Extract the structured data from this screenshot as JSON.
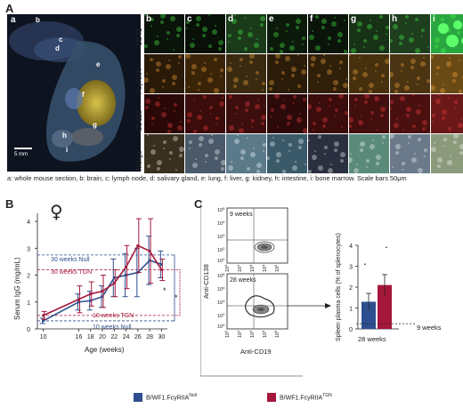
{
  "panel_labels": {
    "A": "A",
    "B": "B",
    "C": "C"
  },
  "panelA": {
    "overview_letters": [
      "a",
      "b",
      "c",
      "d",
      "e",
      "f",
      "g",
      "h",
      "i"
    ],
    "scale_label": "5 mm",
    "row_labels": [
      "CD41",
      "FcγRIIA",
      "CD11b",
      "Merge"
    ],
    "column_letters": [
      "b",
      "c",
      "d",
      "e",
      "f",
      "g",
      "h",
      "i"
    ],
    "caption": "a: whole mouse section, b: brain, c: lymph node, d: salivary gland, e: lung, f: liver, g: kidney, h: intestine, i: bone marrow. Scale bars 50μm"
  },
  "panelB": {
    "sex_symbol": "♀",
    "ylabel": "Serum IgG (mg/mL)",
    "xlabel": "Age (weeks)",
    "annotations": {
      "null30": "30 weeks Null",
      "tgn30": "30 weeks TGN",
      "tgn10": "10 weeks TGN",
      "null10": "10 weeks Null",
      "sig1": "*",
      "sig2": "*"
    }
  },
  "panelC": {
    "flow_top_label": "9 weeks",
    "flow_bottom_label": "28 weeks",
    "flow_ylabel": "Anti-CD138",
    "flow_xlabel": "Anti-CD19",
    "bar_ylabel": "Spleen plasma cells (% of splenocytes)",
    "bar_xlabel": "28 weeks",
    "ref_label": "9 weeks"
  },
  "legend": {
    "null_label": "B/WF1.FcγRIIA",
    "null_sup": "Null",
    "tgn_label": "B/WF1.FcγRIIA",
    "tgn_sup": "TGN"
  },
  "colors": {
    "null": "#2e4f8f",
    "tgn": "#a5173a"
  },
  "chart_data": [
    {
      "type": "line",
      "title": "",
      "xlabel": "Age (weeks)",
      "ylabel": "Serum IgG (mg/mL)",
      "x": [
        10,
        16,
        18,
        20,
        22,
        24,
        26,
        28,
        30
      ],
      "xticks": [
        "10",
        "16",
        "18",
        "20",
        "22",
        "24",
        "26",
        "28",
        "30"
      ],
      "yticks": [
        "0",
        "1",
        "2",
        "3",
        "4"
      ],
      "xlim": [
        9,
        31
      ],
      "ylim": [
        0,
        4.3
      ],
      "series": [
        {
          "name": "B/WF1.FcγRIIA Null",
          "color": "#2e4f8f",
          "values": [
            0.3,
            1.0,
            1.05,
            1.2,
            1.9,
            2.0,
            2.1,
            2.55,
            2.4
          ],
          "err": [
            0.1,
            0.3,
            0.35,
            0.4,
            0.7,
            0.8,
            0.9,
            0.9,
            0.5
          ]
        },
        {
          "name": "B/WF1.FcγRIIA TGN",
          "color": "#a5173a",
          "values": [
            0.5,
            1.1,
            1.3,
            1.4,
            1.7,
            2.3,
            3.1,
            2.9,
            2.2
          ],
          "err": [
            0.15,
            0.5,
            0.45,
            0.6,
            0.5,
            0.8,
            1.0,
            1.2,
            0.4
          ]
        }
      ]
    },
    {
      "type": "bar",
      "title": "",
      "xlabel": "28 weeks",
      "ylabel": "Spleen plasma cells (% of splenocytes)",
      "categories": [
        "B/WF1.FcγRIIA Null",
        "B/WF1.FcγRIIA TGN"
      ],
      "values": [
        1.3,
        2.1
      ],
      "err": [
        0.4,
        0.5
      ],
      "yticks": [
        "0",
        "1",
        "2",
        "3",
        "4"
      ],
      "ylim": [
        0,
        4
      ],
      "reference_line": {
        "label": "9 weeks",
        "value": 0.25
      }
    }
  ]
}
